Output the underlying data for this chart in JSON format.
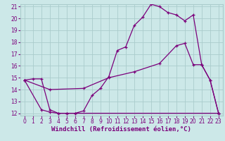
{
  "xlabel": "Windchill (Refroidissement éolien,°C)",
  "background_color": "#cce8e8",
  "grid_color": "#aacccc",
  "line_color": "#7b007b",
  "xlim": [
    -0.5,
    23.5
  ],
  "ylim": [
    11.8,
    21.2
  ],
  "xticks": [
    0,
    1,
    2,
    3,
    4,
    5,
    6,
    7,
    8,
    9,
    10,
    11,
    12,
    13,
    14,
    15,
    16,
    17,
    18,
    19,
    20,
    21,
    22,
    23
  ],
  "yticks": [
    12,
    13,
    14,
    15,
    16,
    17,
    18,
    19,
    20,
    21
  ],
  "line1_x": [
    0,
    1,
    2,
    3,
    4,
    5,
    6,
    23
  ],
  "line1_y": [
    14.8,
    14.9,
    14.9,
    12.3,
    12.0,
    12.0,
    12.0,
    12.0
  ],
  "line2_x": [
    0,
    2,
    3,
    4,
    5,
    6,
    7,
    8,
    9,
    10,
    11,
    12,
    13,
    14,
    15,
    16,
    17,
    18,
    19,
    20,
    21,
    22,
    23
  ],
  "line2_y": [
    14.8,
    12.3,
    12.1,
    12.0,
    12.0,
    12.0,
    12.2,
    13.5,
    14.1,
    15.1,
    17.3,
    17.6,
    19.4,
    20.1,
    21.2,
    21.0,
    20.5,
    20.3,
    19.8,
    20.3,
    16.1,
    14.8,
    12.0
  ],
  "line3_x": [
    0,
    3,
    7,
    10,
    13,
    16,
    18,
    19,
    20,
    21,
    22,
    23
  ],
  "line3_y": [
    14.8,
    14.0,
    14.1,
    15.0,
    15.5,
    16.2,
    17.7,
    17.9,
    16.1,
    16.1,
    14.8,
    12.0
  ],
  "tick_fontsize": 5.5,
  "xlabel_fontsize": 6.5
}
